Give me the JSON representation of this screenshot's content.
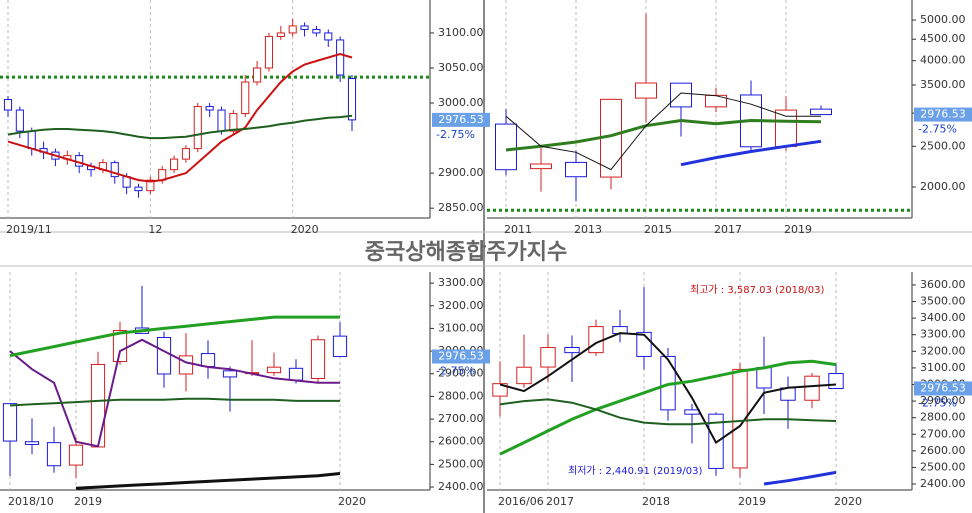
{
  "title": "중국상해종합주가지수",
  "chart_data": [
    {
      "type": "candlestick",
      "categories": [
        "2019/11",
        null,
        null,
        null,
        null,
        null,
        null,
        null,
        null,
        null,
        null,
        null,
        "12",
        null,
        null,
        null,
        null,
        null,
        null,
        null,
        null,
        null,
        null,
        null,
        "2020",
        null,
        null,
        null,
        null,
        null
      ],
      "open": [
        3005,
        2990,
        2960,
        2935,
        2930,
        2920,
        2925,
        2910,
        2905,
        2915,
        2895,
        2880,
        2875,
        2890,
        2905,
        2920,
        2935,
        2995,
        2990,
        2960,
        2985,
        3030,
        3050,
        3095,
        3100,
        3110,
        3105,
        3100,
        3090,
        3035
      ],
      "high": [
        3010,
        2995,
        2965,
        2945,
        2935,
        2932,
        2930,
        2915,
        2920,
        2918,
        2900,
        2885,
        2895,
        2910,
        2925,
        2940,
        3000,
        3000,
        2995,
        2990,
        3040,
        3060,
        3100,
        3110,
        3120,
        3115,
        3110,
        3105,
        3095,
        3040
      ],
      "low": [
        2980,
        2950,
        2925,
        2920,
        2910,
        2912,
        2900,
        2895,
        2900,
        2885,
        2870,
        2865,
        2870,
        2885,
        2900,
        2915,
        2930,
        2980,
        2955,
        2955,
        2980,
        3025,
        3045,
        3090,
        3095,
        3095,
        3095,
        3080,
        3030,
        2960
      ],
      "close": [
        2990,
        2960,
        2935,
        2930,
        2920,
        2925,
        2910,
        2905,
        2915,
        2895,
        2880,
        2875,
        2890,
        2905,
        2920,
        2935,
        2995,
        2990,
        2960,
        2985,
        3030,
        3050,
        3095,
        3100,
        3110,
        3105,
        3100,
        3090,
        3040,
        2976
      ],
      "series": [
        {
          "color": "#cc1111",
          "width": 2,
          "values": [
            2945,
            2940,
            2935,
            2930,
            2925,
            2920,
            2915,
            2910,
            2905,
            2900,
            2895,
            2890,
            2888,
            2890,
            2895,
            2900,
            2915,
            2930,
            2945,
            2955,
            2965,
            2990,
            3010,
            3030,
            3045,
            3055,
            3060,
            3065,
            3070,
            3065
          ]
        },
        {
          "color": "#1f5f1f",
          "width": 2,
          "values": [
            2955,
            2958,
            2960,
            2962,
            2963,
            2963,
            2962,
            2961,
            2960,
            2958,
            2955,
            2952,
            2950,
            2950,
            2951,
            2952,
            2955,
            2958,
            2960,
            2962,
            2963,
            2965,
            2967,
            2970,
            2972,
            2975,
            2977,
            2979,
            2980,
            2982
          ]
        }
      ],
      "hlines": [
        {
          "value": 3037,
          "color": "#1a8a1a"
        }
      ],
      "ylim": [
        2836,
        3147
      ],
      "log_scale": false,
      "yticks": [
        {
          "value": 2850,
          "label": "2850.00"
        },
        {
          "value": 2900,
          "label": "2900.00"
        },
        {
          "value": 3000,
          "label": "3000.00"
        },
        {
          "value": 3050,
          "label": "3050.00"
        },
        {
          "value": 3100,
          "label": "3100.00"
        }
      ],
      "last_label": "2976.53",
      "change_label": "-2.75%"
    },
    {
      "type": "candlestick",
      "categories": [
        "2011",
        null,
        "2013",
        null,
        "2015",
        null,
        "2017",
        null,
        "2019",
        null
      ],
      "open": [
        2825,
        2212,
        2289,
        2112,
        3258,
        3536,
        3105,
        3314,
        2497,
        3066
      ],
      "high": [
        3067,
        2478,
        2444,
        3239,
        5178,
        3539,
        3450,
        3587,
        3288,
        3127
      ],
      "low": [
        2134,
        1949,
        1849,
        1974,
        2850,
        2638,
        3017,
        2449,
        2440,
        2977
      ],
      "close": [
        2199,
        2269,
        2116,
        3235,
        3539,
        3104,
        3307,
        2494,
        3050,
        2976
      ],
      "series": [
        {
          "color": "#2e7d1e",
          "width": 3,
          "values": [
            2450,
            2500,
            2560,
            2650,
            2800,
            2880,
            2830,
            2880,
            2870,
            2860
          ]
        },
        {
          "color": "#111111",
          "width": 1,
          "values": [
            2950,
            2500,
            2420,
            2200,
            2800,
            3350,
            3300,
            3150,
            2950,
            2950
          ]
        },
        {
          "color": "#2233dd",
          "width": 3,
          "values": [
            null,
            null,
            null,
            null,
            null,
            2260,
            2350,
            2430,
            2500,
            2570
          ]
        }
      ],
      "hlines": [
        {
          "value": 1760,
          "color": "#1a8a1a"
        }
      ],
      "ylim": [
        1687,
        5581
      ],
      "log_scale": true,
      "yticks": [
        {
          "value": 2000,
          "label": "2000.00"
        },
        {
          "value": 2500,
          "label": "2500.00"
        },
        {
          "value": 3000,
          "label": "3000.00"
        },
        {
          "value": 3500,
          "label": "3500.00"
        },
        {
          "value": 4000,
          "label": "4000.00"
        },
        {
          "value": 4500,
          "label": "4500.00"
        },
        {
          "value": 5000,
          "label": "5000.00"
        }
      ],
      "last_label": "2976.53",
      "change_label": "-2.75%"
    },
    {
      "type": "candlestick",
      "categories": [
        "2018/10",
        null,
        null,
        "2019",
        null,
        null,
        null,
        null,
        null,
        null,
        null,
        null,
        null,
        null,
        null,
        "2020"
      ],
      "open": [
        2768,
        2600,
        2596,
        2497,
        2577,
        2954,
        3102,
        3060,
        2899,
        2989,
        2913,
        2903,
        2905,
        2924,
        2879,
        3066
      ],
      "high": [
        2771,
        2703,
        2666,
        2618,
        2997,
        3129,
        3288,
        3086,
        3080,
        3048,
        2932,
        3048,
        2994,
        2964,
        3069,
        3127
      ],
      "low": [
        2449,
        2545,
        2463,
        2440,
        2576,
        2940,
        3085,
        2838,
        2822,
        2878,
        2733,
        2890,
        2891,
        2857,
        2857,
        2977
      ],
      "close": [
        2603,
        2588,
        2494,
        2585,
        2941,
        3091,
        3078,
        2899,
        2979,
        2932,
        2886,
        2905,
        2929,
        2872,
        3050,
        2976
      ],
      "series": [
        {
          "color": "#6a1b8a",
          "width": 2,
          "values": [
            3000,
            2920,
            2860,
            2600,
            2580,
            3000,
            3050,
            3000,
            2950,
            2930,
            2920,
            2900,
            2880,
            2870,
            2860,
            2860
          ]
        },
        {
          "color": "#22a022",
          "width": 3,
          "values": [
            2980,
            3000,
            3020,
            3040,
            3060,
            3080,
            3090,
            3100,
            3110,
            3120,
            3130,
            3140,
            3150,
            3150,
            3150,
            3150
          ]
        },
        {
          "color": "#1f5f1f",
          "width": 2,
          "values": [
            2760,
            2765,
            2770,
            2775,
            2780,
            2785,
            2785,
            2785,
            2790,
            2790,
            2785,
            2785,
            2785,
            2780,
            2780,
            2780
          ]
        },
        {
          "color": "#111111",
          "width": 3,
          "values": [
            null,
            null,
            null,
            2395,
            2400,
            2405,
            2410,
            2415,
            2420,
            2425,
            2430,
            2435,
            2440,
            2445,
            2450,
            2460
          ]
        }
      ],
      "hlines": [],
      "ylim": [
        2387,
        3349
      ],
      "log_scale": false,
      "yticks": [
        {
          "value": 2400,
          "label": "2400.00"
        },
        {
          "value": 2500,
          "label": "2500.00"
        },
        {
          "value": 2600,
          "label": "2600.00"
        },
        {
          "value": 2700,
          "label": "2700.00"
        },
        {
          "value": 2800,
          "label": "2800.00"
        },
        {
          "value": 2900,
          "label": "2900.00"
        },
        {
          "value": 3000,
          "label": "3000.00"
        },
        {
          "value": 3100,
          "label": "3100.00"
        },
        {
          "value": 3200,
          "label": "3200.00"
        },
        {
          "value": 3300,
          "label": "3300.00"
        }
      ],
      "last_label": "2976.53",
      "change_label": "-2.75%"
    },
    {
      "type": "candlestick",
      "categories": [
        "2016/06",
        null,
        "2017",
        null,
        null,
        null,
        "2018",
        null,
        null,
        null,
        "2019",
        null,
        null,
        null,
        "2020"
      ],
      "open": [
        2930,
        3005,
        3105,
        3223,
        3192,
        3349,
        3314,
        3169,
        2847,
        2821,
        2497,
        3102,
        2979,
        2905,
        3066
      ],
      "high": [
        3140,
        3301,
        3301,
        3295,
        3391,
        3450,
        3587,
        3220,
        2882,
        2832,
        3129,
        3288,
        3048,
        3069,
        3127
      ],
      "low": [
        2807,
        2980,
        3016,
        3016,
        3172,
        3254,
        3091,
        2782,
        2644,
        2449,
        2440,
        2822,
        2733,
        2857,
        2977
      ],
      "close": [
        3005,
        3104,
        3223,
        3192,
        3349,
        3307,
        3169,
        2847,
        2821,
        2494,
        3091,
        2979,
        2905,
        3050,
        2976
      ],
      "series": [
        {
          "color": "#111111",
          "width": 2,
          "values": [
            3000,
            2960,
            3050,
            3150,
            3250,
            3310,
            3300,
            3150,
            2920,
            2650,
            2750,
            2950,
            2980,
            2990,
            3000
          ]
        },
        {
          "color": "#22a022",
          "width": 3,
          "values": [
            2580,
            2650,
            2720,
            2790,
            2850,
            2900,
            2950,
            3000,
            3020,
            3050,
            3080,
            3100,
            3130,
            3140,
            3120
          ]
        },
        {
          "color": "#1f5f1f",
          "width": 2,
          "values": [
            2880,
            2900,
            2910,
            2890,
            2850,
            2800,
            2770,
            2760,
            2760,
            2770,
            2780,
            2790,
            2790,
            2785,
            2780
          ]
        },
        {
          "color": "#2233dd",
          "width": 3,
          "values": [
            null,
            null,
            null,
            null,
            null,
            null,
            null,
            null,
            null,
            null,
            null,
            2400,
            2420,
            2445,
            2470
          ]
        }
      ],
      "hlines": [],
      "annotations": [
        {
          "text": "최고가 : 3,587.03 (2018/03)"
        },
        {
          "text": "최저가 : 2,440.91 (2019/03)"
        }
      ],
      "ylim": [
        2364,
        3678
      ],
      "log_scale": false,
      "yticks": [
        {
          "value": 2400,
          "label": "2400.00"
        },
        {
          "value": 2500,
          "label": "2500.00"
        },
        {
          "value": 2600,
          "label": "2600.00"
        },
        {
          "value": 2700,
          "label": "2700.00"
        },
        {
          "value": 2800,
          "label": "2800.00"
        },
        {
          "value": 2900,
          "label": "2900.00"
        },
        {
          "value": 3000,
          "label": "3000.00"
        },
        {
          "value": 3100,
          "label": "3100.00"
        },
        {
          "value": 3200,
          "label": "3200.00"
        },
        {
          "value": 3300,
          "label": "3300.00"
        },
        {
          "value": 3400,
          "label": "3400.00"
        },
        {
          "value": 3500,
          "label": "3500.00"
        },
        {
          "value": 3600,
          "label": "3600.00"
        }
      ],
      "last_label": "2976.53",
      "change_label": "-2.75%"
    }
  ]
}
